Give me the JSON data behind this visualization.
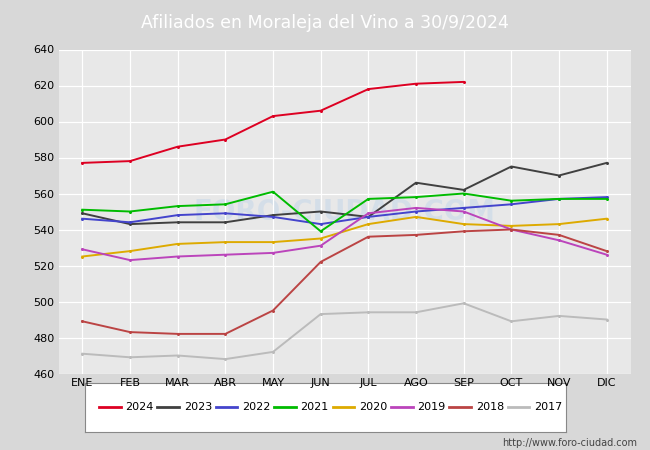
{
  "title": "Afiliados en Moraleja del Vino a 30/9/2024",
  "title_bg_color": "#4aa8d8",
  "title_text_color": "white",
  "watermark": "http://www.foro-ciudad.com",
  "xlabels": [
    "ENE",
    "FEB",
    "MAR",
    "ABR",
    "MAY",
    "JUN",
    "JUL",
    "AGO",
    "SEP",
    "OCT",
    "NOV",
    "DIC"
  ],
  "ylim": [
    460,
    640
  ],
  "yticks": [
    460,
    480,
    500,
    520,
    540,
    560,
    580,
    600,
    620,
    640
  ],
  "background_color": "#d8d8d8",
  "plot_bg_color": "#e8e8e8",
  "grid_color": "white",
  "series": {
    "2024": {
      "color": "#dd0022",
      "data": [
        577,
        578,
        586,
        590,
        603,
        606,
        618,
        621,
        622,
        null,
        null,
        null
      ]
    },
    "2023": {
      "color": "#404040",
      "data": [
        549,
        543,
        544,
        544,
        548,
        550,
        547,
        566,
        562,
        575,
        570,
        577
      ]
    },
    "2022": {
      "color": "#4444cc",
      "data": [
        546,
        544,
        548,
        549,
        547,
        543,
        547,
        550,
        552,
        554,
        557,
        558
      ]
    },
    "2021": {
      "color": "#00bb00",
      "data": [
        551,
        550,
        553,
        554,
        561,
        539,
        557,
        558,
        560,
        556,
        557,
        557
      ]
    },
    "2020": {
      "color": "#ddaa00",
      "data": [
        525,
        528,
        532,
        533,
        533,
        535,
        543,
        547,
        543,
        542,
        543,
        546
      ]
    },
    "2019": {
      "color": "#bb44bb",
      "data": [
        529,
        523,
        525,
        526,
        527,
        531,
        549,
        552,
        550,
        540,
        534,
        526
      ]
    },
    "2018": {
      "color": "#bb4444",
      "data": [
        489,
        483,
        482,
        482,
        495,
        522,
        536,
        537,
        539,
        540,
        537,
        528
      ]
    },
    "2017": {
      "color": "#bbbbbb",
      "data": [
        471,
        469,
        470,
        468,
        472,
        493,
        494,
        494,
        499,
        489,
        492,
        490
      ]
    }
  },
  "legend_order": [
    "2024",
    "2023",
    "2022",
    "2021",
    "2020",
    "2019",
    "2018",
    "2017"
  ],
  "foro_watermark": "FORO-CIUDAD.COM",
  "foro_watermark_color": "#c8d8e8",
  "foro_watermark_alpha": 0.6
}
